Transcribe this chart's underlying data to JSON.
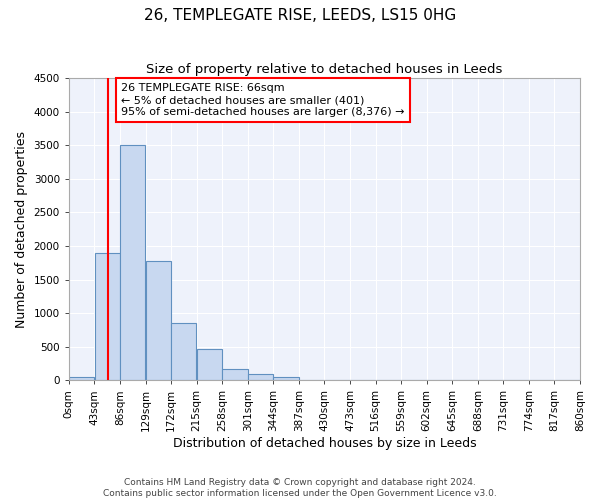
{
  "title": "26, TEMPLEGATE RISE, LEEDS, LS15 0HG",
  "subtitle": "Size of property relative to detached houses in Leeds",
  "xlabel": "Distribution of detached houses by size in Leeds",
  "ylabel": "Number of detached properties",
  "bin_edges": [
    0,
    43,
    86,
    129,
    172,
    215,
    258,
    301,
    344,
    387,
    430,
    473,
    516,
    559,
    602,
    645,
    688,
    731,
    774,
    817,
    860
  ],
  "bin_labels": [
    "0sqm",
    "43sqm",
    "86sqm",
    "129sqm",
    "172sqm",
    "215sqm",
    "258sqm",
    "301sqm",
    "344sqm",
    "387sqm",
    "430sqm",
    "473sqm",
    "516sqm",
    "559sqm",
    "602sqm",
    "645sqm",
    "688sqm",
    "731sqm",
    "774sqm",
    "817sqm",
    "860sqm"
  ],
  "bar_heights": [
    50,
    1900,
    3500,
    1780,
    850,
    460,
    175,
    90,
    50,
    0,
    0,
    0,
    0,
    0,
    0,
    0,
    0,
    0,
    0,
    0
  ],
  "bar_color": "#c8d8f0",
  "bar_edge_color": "#6090c0",
  "red_line_x": 66,
  "ylim": [
    0,
    4500
  ],
  "yticks": [
    0,
    500,
    1000,
    1500,
    2000,
    2500,
    3000,
    3500,
    4000,
    4500
  ],
  "annotation_text": "26 TEMPLEGATE RISE: 66sqm\n← 5% of detached houses are smaller (401)\n95% of semi-detached houses are larger (8,376) →",
  "footer_line1": "Contains HM Land Registry data © Crown copyright and database right 2024.",
  "footer_line2": "Contains public sector information licensed under the Open Government Licence v3.0.",
  "background_color": "#ffffff",
  "plot_background": "#eef2fb",
  "title_fontsize": 11,
  "subtitle_fontsize": 9.5,
  "axis_label_fontsize": 9,
  "tick_label_fontsize": 7.5,
  "footer_fontsize": 6.5
}
